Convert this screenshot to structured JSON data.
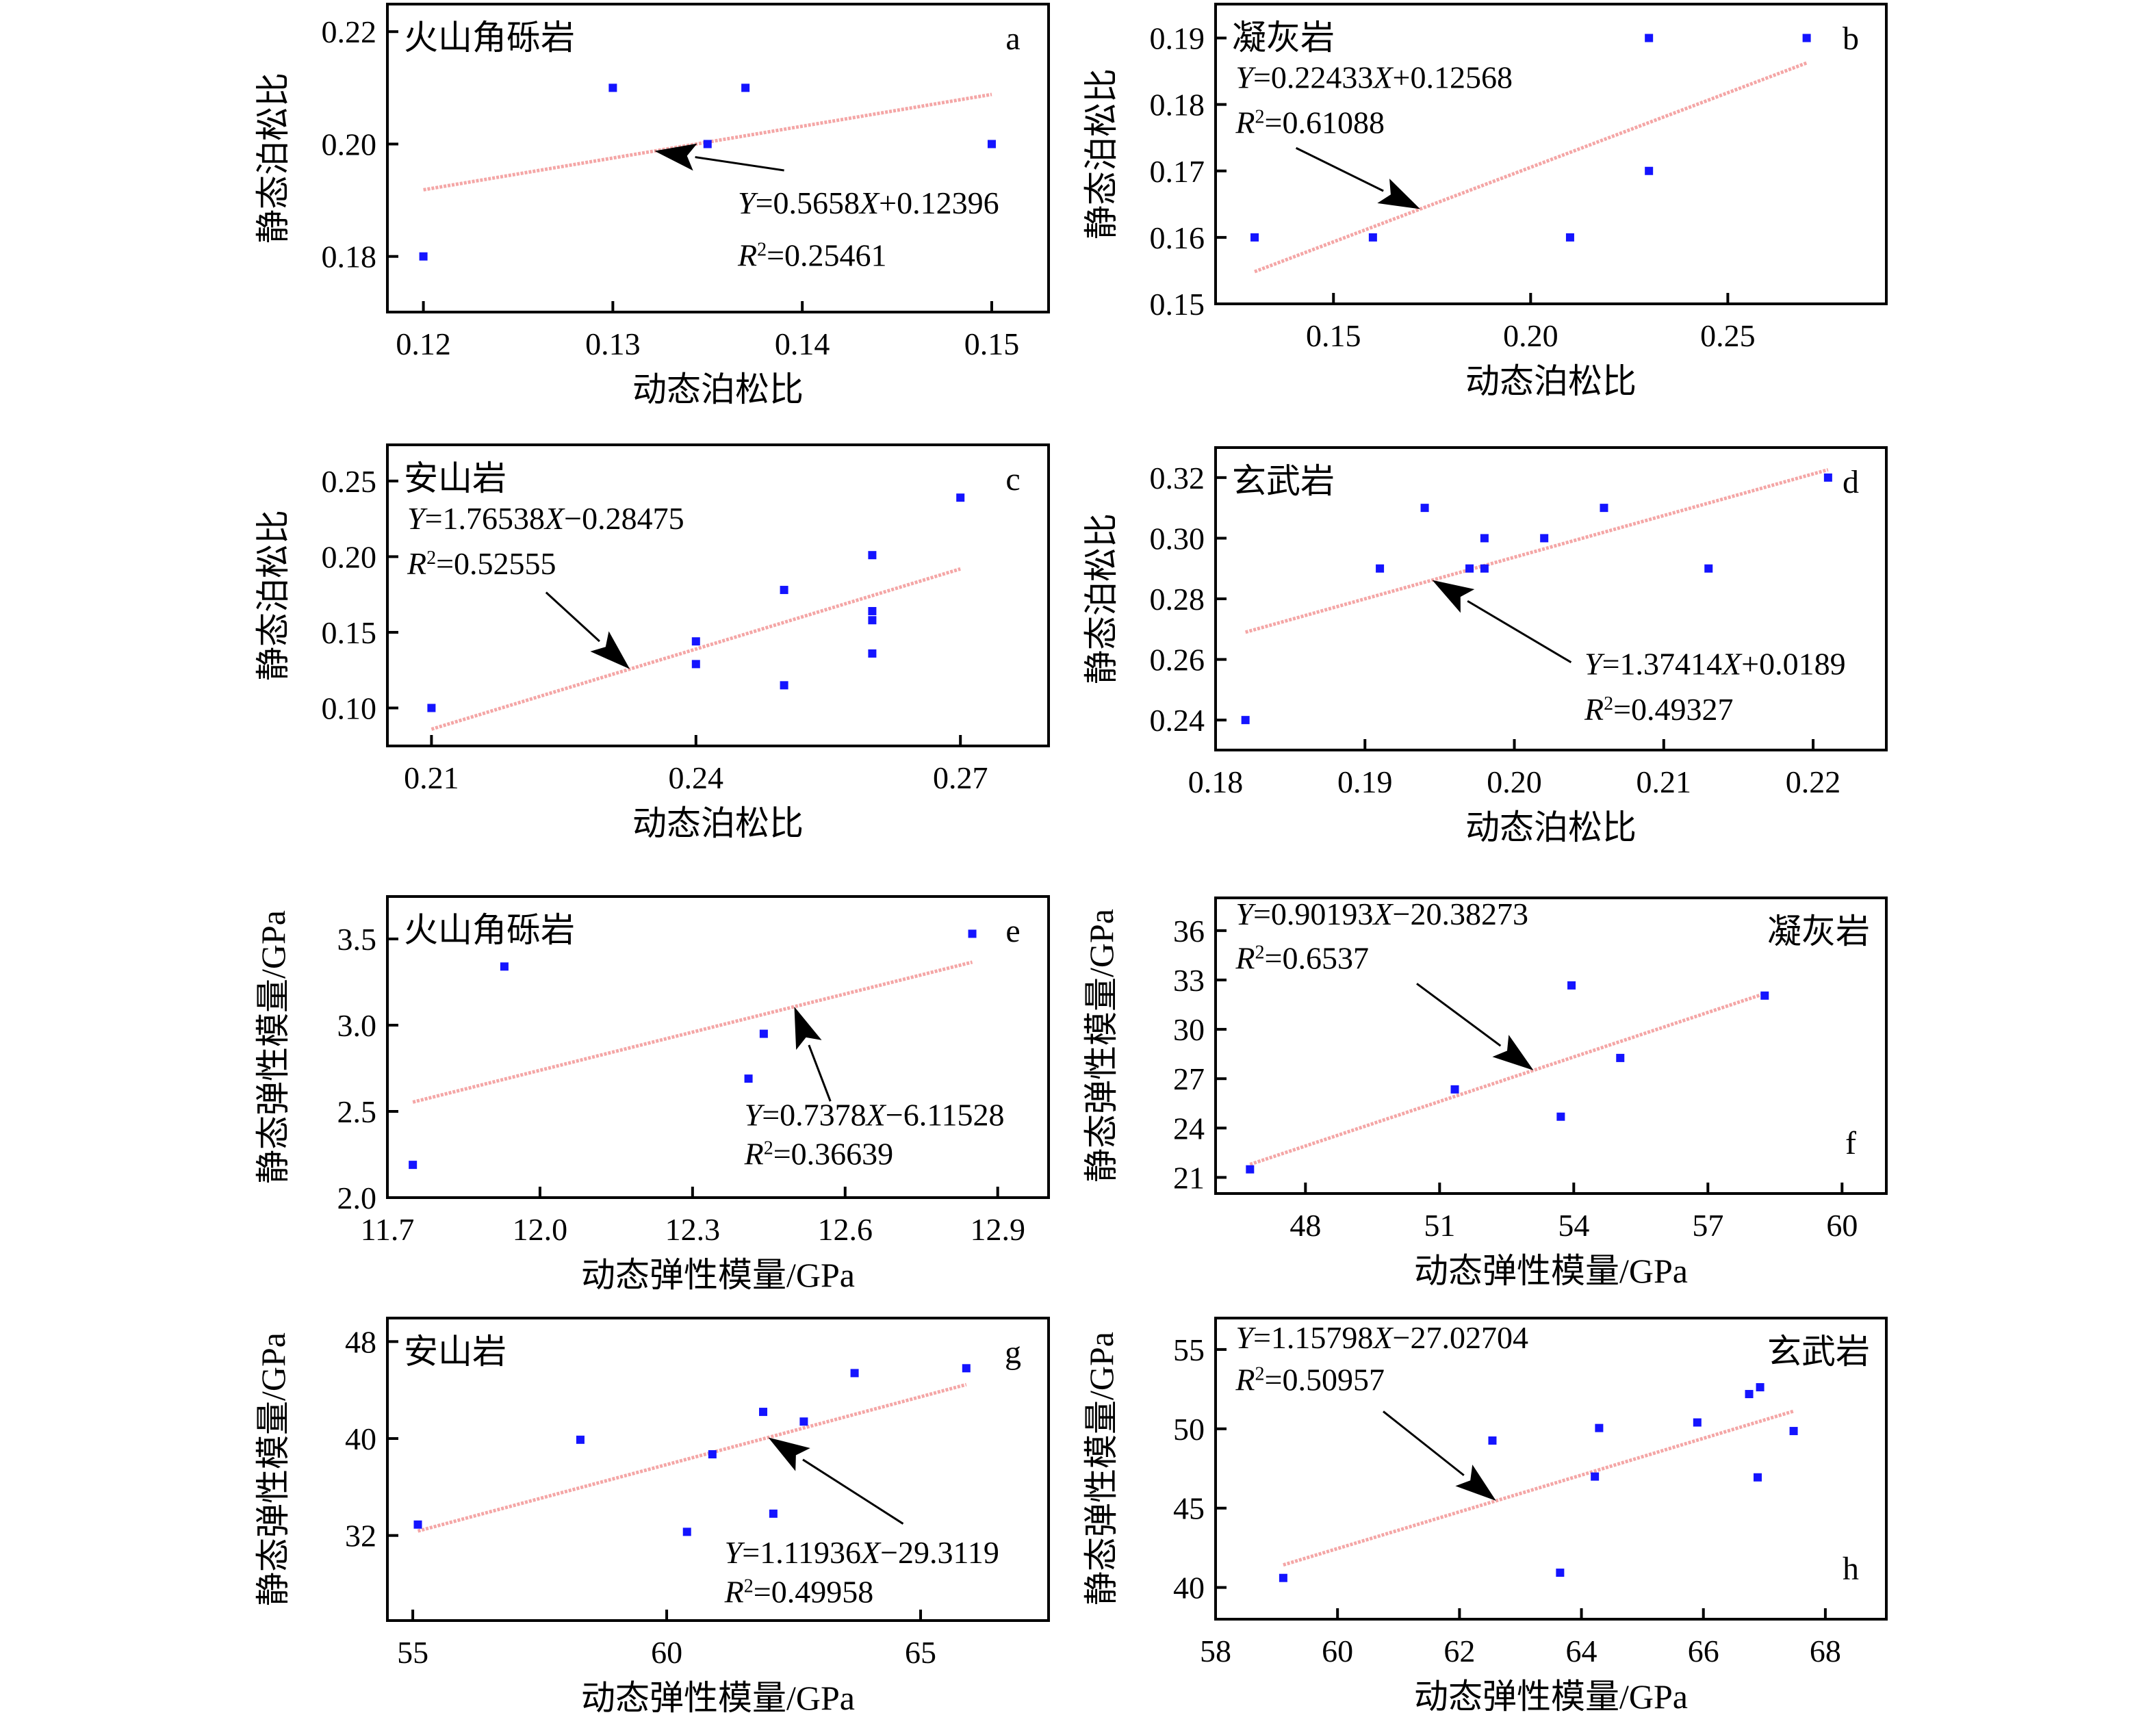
{
  "figure": {
    "marker_color": "#1414ff",
    "trendline_color": "#f4a6a6"
  },
  "chart_data": [
    {
      "id": "a",
      "type": "scatter",
      "panel_letter": "a",
      "rock_type": "火山角砾岩",
      "xlabel": "动态泊松比",
      "ylabel": "静态泊松比",
      "xlim": [
        0.1181,
        0.153
      ],
      "ylim": [
        0.1701,
        0.2249
      ],
      "xticks": [
        0.12,
        0.13,
        0.14,
        0.15
      ],
      "xtick_labels": [
        "0.12",
        "0.13",
        "0.14",
        "0.15"
      ],
      "yticks": [
        0.18,
        0.2,
        0.22
      ],
      "ytick_labels": [
        "0.18",
        "0.20",
        "0.22"
      ],
      "points": [
        [
          0.12,
          0.18
        ],
        [
          0.13,
          0.21
        ],
        [
          0.135,
          0.2
        ],
        [
          0.137,
          0.21
        ],
        [
          0.15,
          0.2
        ]
      ],
      "fit": {
        "slope": 0.5658,
        "intercept": 0.12396,
        "x_range": [
          0.12,
          0.15
        ]
      },
      "equation": {
        "prefix": "Y",
        "body": "=0.5658",
        "x": "X",
        "tail": "+0.12396"
      },
      "r2": "=0.25461",
      "grid": false
    },
    {
      "id": "b",
      "type": "scatter",
      "panel_letter": "b",
      "rock_type": "凝灰岩",
      "xlabel": "动态泊松比",
      "ylabel": "静态泊松比",
      "xlim": [
        0.1201,
        0.2902
      ],
      "ylim": [
        0.15,
        0.1951
      ],
      "xticks": [
        0.15,
        0.2,
        0.25
      ],
      "xtick_labels": [
        "0.15",
        "0.20",
        "0.25"
      ],
      "yticks": [
        0.15,
        0.16,
        0.17,
        0.18,
        0.19
      ],
      "ytick_labels": [
        "0.15",
        "0.16",
        "0.17",
        "0.18",
        "0.19"
      ],
      "points": [
        [
          0.13,
          0.16
        ],
        [
          0.16,
          0.16
        ],
        [
          0.21,
          0.16
        ],
        [
          0.23,
          0.19
        ],
        [
          0.23,
          0.17
        ],
        [
          0.27,
          0.19
        ]
      ],
      "fit": {
        "slope": 0.22433,
        "intercept": 0.12568,
        "x_range": [
          0.13,
          0.27
        ]
      },
      "equation": {
        "prefix": "Y",
        "body": "=0.22433",
        "x": "X",
        "tail": "+0.12568"
      },
      "r2": "=0.61088",
      "grid": false
    },
    {
      "id": "c",
      "type": "scatter",
      "panel_letter": "c",
      "rock_type": "安山岩",
      "xlabel": "动态泊松比",
      "ylabel": "静态泊松比",
      "xlim": [
        0.205,
        0.28
      ],
      "ylim": [
        0.0749,
        0.2739
      ],
      "xticks": [
        0.21,
        0.24,
        0.27
      ],
      "xtick_labels": [
        "0.21",
        "0.24",
        "0.27"
      ],
      "yticks": [
        0.1,
        0.15,
        0.2,
        0.25
      ],
      "ytick_labels": [
        "0.10",
        "0.15",
        "0.20",
        "0.25"
      ],
      "points": [
        [
          0.21,
          0.1
        ],
        [
          0.24,
          0.144
        ],
        [
          0.24,
          0.129
        ],
        [
          0.25,
          0.178
        ],
        [
          0.25,
          0.115
        ],
        [
          0.26,
          0.201
        ],
        [
          0.26,
          0.164
        ],
        [
          0.26,
          0.158
        ],
        [
          0.26,
          0.136
        ],
        [
          0.27,
          0.239
        ]
      ],
      "fit": {
        "slope": 1.76538,
        "intercept": -0.28475,
        "x_range": [
          0.21,
          0.27
        ]
      },
      "equation": {
        "prefix": "Y",
        "body": "=1.76538",
        "x": "X",
        "tail": "−0.28475"
      },
      "r2": "=0.52555",
      "grid": false
    },
    {
      "id": "d",
      "type": "scatter",
      "panel_letter": "d",
      "rock_type": "玄武岩",
      "xlabel": "动态泊松比",
      "ylabel": "静态泊松比",
      "xlim": [
        0.18,
        0.2249
      ],
      "ylim": [
        0.2301,
        0.3299
      ],
      "xticks": [
        0.18,
        0.19,
        0.2,
        0.21,
        0.22
      ],
      "xtick_labels": [
        "0.18",
        "0.19",
        "0.20",
        "0.21",
        "0.22"
      ],
      "yticks": [
        0.24,
        0.26,
        0.28,
        0.3,
        0.32
      ],
      "ytick_labels": [
        "0.24",
        "0.26",
        "0.28",
        "0.30",
        "0.32"
      ],
      "points": [
        [
          0.182,
          0.24
        ],
        [
          0.191,
          0.29
        ],
        [
          0.194,
          0.31
        ],
        [
          0.197,
          0.29
        ],
        [
          0.198,
          0.3
        ],
        [
          0.198,
          0.29
        ],
        [
          0.202,
          0.3
        ],
        [
          0.206,
          0.31
        ],
        [
          0.213,
          0.29
        ],
        [
          0.221,
          0.32
        ]
      ],
      "fit": {
        "slope": 1.37414,
        "intercept": 0.0189,
        "x_range": [
          0.182,
          0.221
        ]
      },
      "equation": {
        "prefix": "Y",
        "body": "=1.37414",
        "x": "X",
        "tail": "+0.0189"
      },
      "r2": "=0.49327",
      "grid": false
    },
    {
      "id": "e",
      "type": "scatter",
      "panel_letter": "e",
      "rock_type": "火山角砾岩",
      "xlabel": "动态弹性模量/GPa",
      "ylabel": "静态弹性模量/GPa",
      "xlim": [
        11.7,
        13.0
      ],
      "ylim": [
        2.0,
        3.746
      ],
      "xticks": [
        11.7,
        12.0,
        12.3,
        12.6,
        12.9
      ],
      "xtick_labels": [
        "11.7",
        "12.0",
        "12.3",
        "12.6",
        "12.9"
      ],
      "yticks": [
        2.0,
        2.5,
        3.0,
        3.5
      ],
      "ytick_labels": [
        "2.0",
        "2.5",
        "3.0",
        "3.5"
      ],
      "points": [
        [
          11.75,
          2.19
        ],
        [
          11.93,
          3.34
        ],
        [
          12.41,
          2.69
        ],
        [
          12.44,
          2.95
        ],
        [
          12.85,
          3.53
        ]
      ],
      "fit": {
        "slope": 0.7378,
        "intercept": -6.11528,
        "x_range": [
          11.75,
          12.85
        ]
      },
      "equation": {
        "prefix": "Y",
        "body": "=0.7378",
        "x": "X",
        "tail": "−6.11528"
      },
      "r2": "=0.36639",
      "grid": false
    },
    {
      "id": "f",
      "type": "scatter",
      "panel_letter": "f",
      "rock_type": "凝灰岩",
      "xlabel": "动态弹性模量/GPa",
      "ylabel": "静态弹性模量/GPa",
      "xlim": [
        45.99,
        60.99
      ],
      "ylim": [
        20.02,
        37.99
      ],
      "xticks": [
        48,
        51,
        54,
        57,
        60
      ],
      "xtick_labels": [
        "48",
        "51",
        "54",
        "57",
        "60"
      ],
      "yticks": [
        21,
        24,
        27,
        30,
        33,
        36
      ],
      "ytick_labels": [
        "21",
        "24",
        "27",
        "30",
        "33",
        "36"
      ],
      "points": [
        [
          46.76,
          21.49
        ],
        [
          51.34,
          26.35
        ],
        [
          53.71,
          24.69
        ],
        [
          53.95,
          32.67
        ],
        [
          55.04,
          28.26
        ],
        [
          58.27,
          32.05
        ]
      ],
      "fit": {
        "slope": 0.90193,
        "intercept": -20.38273,
        "x_range": [
          46.76,
          58.27
        ]
      },
      "equation": {
        "prefix": "Y",
        "body": "=0.90193",
        "x": "X",
        "tail": "−20.38273"
      },
      "r2": "=0.6537",
      "grid": false
    },
    {
      "id": "g",
      "type": "scatter",
      "panel_letter": "g",
      "rock_type": "安山岩",
      "xlabel": "动态弹性模量/GPa",
      "ylabel": "静态弹性模量/GPa",
      "xlim": [
        54.5,
        67.52
      ],
      "ylim": [
        24.98,
        49.94
      ],
      "xticks": [
        55,
        60,
        65
      ],
      "xtick_labels": [
        "55",
        "60",
        "65"
      ],
      "yticks": [
        32,
        40,
        48
      ],
      "ytick_labels": [
        "32",
        "40",
        "48"
      ],
      "points": [
        [
          55.1,
          32.9
        ],
        [
          58.3,
          39.9
        ],
        [
          60.4,
          32.3
        ],
        [
          60.9,
          38.7
        ],
        [
          61.9,
          42.2
        ],
        [
          62.1,
          33.8
        ],
        [
          62.7,
          41.4
        ],
        [
          63.7,
          45.4
        ],
        [
          65.9,
          45.8
        ]
      ],
      "fit": {
        "slope": 1.11936,
        "intercept": -29.3119,
        "x_range": [
          55.1,
          65.9
        ]
      },
      "equation": {
        "prefix": "Y",
        "body": "=1.11936",
        "x": "X",
        "tail": "−29.3119"
      },
      "r2": "=0.49958",
      "grid": false
    },
    {
      "id": "h",
      "type": "scatter",
      "panel_letter": "h",
      "rock_type": "玄武岩",
      "xlabel": "动态弹性模量/GPa",
      "ylabel": "静态弹性模量/GPa",
      "xlim": [
        58.0,
        69.0
      ],
      "ylim": [
        38.0,
        56.98
      ],
      "xticks": [
        58,
        60,
        62,
        64,
        66,
        68
      ],
      "xtick_labels": [
        "58",
        "60",
        "62",
        "64",
        "66",
        "68"
      ],
      "yticks": [
        40,
        45,
        50,
        55
      ],
      "ytick_labels": [
        "40",
        "45",
        "50",
        "55"
      ],
      "points": [
        [
          59.11,
          40.6
        ],
        [
          62.54,
          49.26
        ],
        [
          63.65,
          40.93
        ],
        [
          64.22,
          46.99
        ],
        [
          64.29,
          50.05
        ],
        [
          65.9,
          50.4
        ],
        [
          66.75,
          52.19
        ],
        [
          66.93,
          52.62
        ],
        [
          66.89,
          46.94
        ],
        [
          67.48,
          49.86
        ]
      ],
      "fit": {
        "slope": 1.15798,
        "intercept": -27.02704,
        "x_range": [
          59.11,
          67.48
        ]
      },
      "equation": {
        "prefix": "Y",
        "body": "=1.15798",
        "x": "X",
        "tail": "−27.02704"
      },
      "r2": "=0.50957",
      "grid": false
    }
  ]
}
